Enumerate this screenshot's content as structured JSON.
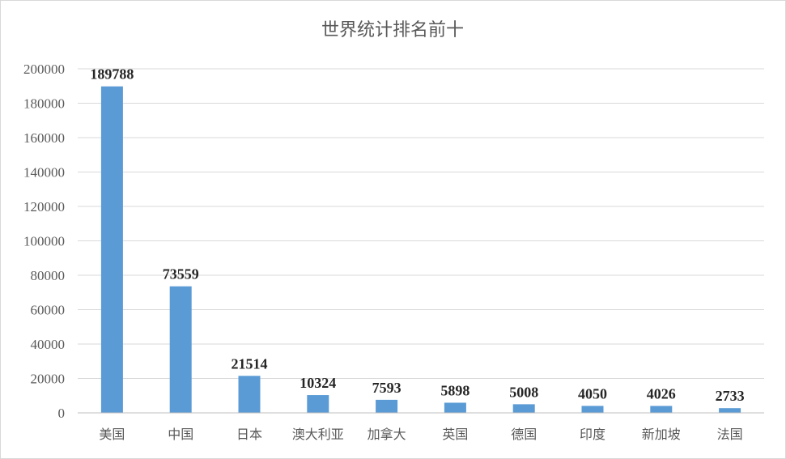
{
  "chart_data": {
    "type": "bar",
    "title": "世界统计排名前十",
    "xlabel": "",
    "ylabel": "",
    "categories": [
      "美国",
      "中国",
      "日本",
      "澳大利亚",
      "加拿大",
      "英国",
      "德国",
      "印度",
      "新加坡",
      "法国"
    ],
    "values": [
      189788,
      73559,
      21514,
      10324,
      7593,
      5898,
      5008,
      4050,
      4026,
      2733
    ],
    "data_labels": [
      "189788",
      "73559",
      "21514",
      "10324",
      "7593",
      "5898",
      "5008",
      "4050",
      "4026",
      "2733"
    ],
    "ylim": [
      0,
      200000
    ],
    "yticks": [
      "0",
      "20000",
      "40000",
      "60000",
      "80000",
      "100000",
      "120000",
      "140000",
      "160000",
      "180000",
      "200000"
    ],
    "grid": true,
    "legend": "none",
    "bar_color": "#5b9bd5"
  }
}
